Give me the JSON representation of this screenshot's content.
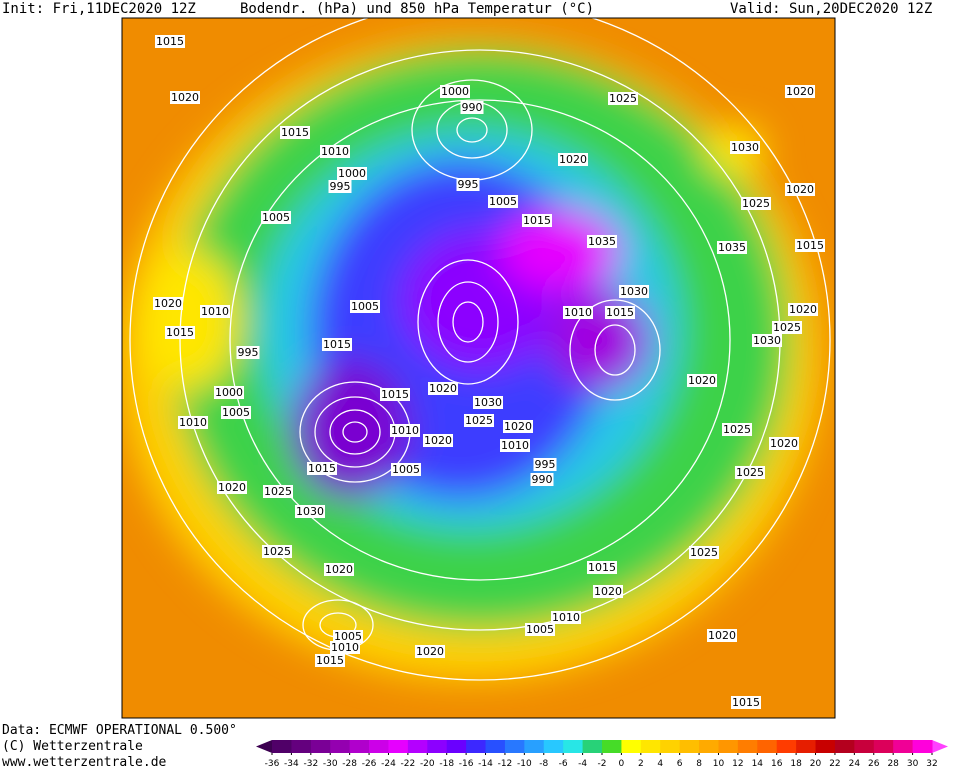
{
  "header": {
    "init": "Init: Fri,11DEC2020 12Z",
    "title": "Bodendr. (hPa) und 850 hPa Temperatur (°C)",
    "valid": "Valid: Sun,20DEC2020 12Z"
  },
  "footer": [
    "Data: ECMWF OPERATIONAL 0.500°",
    "(C) Wetterzentrale",
    "www.wetterzentrale.de"
  ],
  "isobar_labels": [
    "1015",
    "1020",
    "1015",
    "1010",
    "1000",
    "995",
    "1005",
    "1000",
    "990",
    "995",
    "1005",
    "1015",
    "1020",
    "1025",
    "1020",
    "1030",
    "1020",
    "1025",
    "1035",
    "1035",
    "1015",
    "1020",
    "1010",
    "1015",
    "995",
    "1005",
    "1015",
    "1030",
    "1010",
    "1015",
    "1020",
    "1025",
    "1030",
    "1020",
    "1000",
    "1005",
    "1010",
    "1015",
    "1020",
    "1030",
    "1025",
    "1010",
    "1020",
    "1010",
    "1020",
    "1025",
    "1020",
    "995",
    "990",
    "1005",
    "1015",
    "1025",
    "1020",
    "1025",
    "1030",
    "1025",
    "1020",
    "1025",
    "1015",
    "1020",
    "1005",
    "1010",
    "1005",
    "1010",
    "1015",
    "1020",
    "1020",
    "1015"
  ],
  "colorbar": {
    "ticks": [
      -36,
      -34,
      -32,
      -30,
      -28,
      -26,
      -24,
      -22,
      -20,
      -18,
      -16,
      -14,
      -12,
      -10,
      -8,
      -6,
      -4,
      -2,
      0,
      2,
      4,
      6,
      8,
      10,
      12,
      14,
      16,
      18,
      20,
      22,
      24,
      26,
      28,
      30,
      32
    ],
    "colors": [
      "#500068",
      "#64007e",
      "#7a0096",
      "#9400b0",
      "#b000cc",
      "#cc00e8",
      "#e600ff",
      "#b400ff",
      "#8c00ff",
      "#6a00ff",
      "#3c28ff",
      "#2850ff",
      "#2878ff",
      "#28a0ff",
      "#28c8ff",
      "#28e6e6",
      "#28d278",
      "#46dc28",
      "#ffff00",
      "#ffe600",
      "#ffd200",
      "#ffbe00",
      "#ffaa00",
      "#ff9600",
      "#ff7d00",
      "#ff6400",
      "#ff3c00",
      "#e61e00",
      "#c80000",
      "#b4001e",
      "#c8003c",
      "#dc005a",
      "#f00096",
      "#ff00dc"
    ],
    "under_color": "#3c0050",
    "over_color": "#ff40ff"
  }
}
